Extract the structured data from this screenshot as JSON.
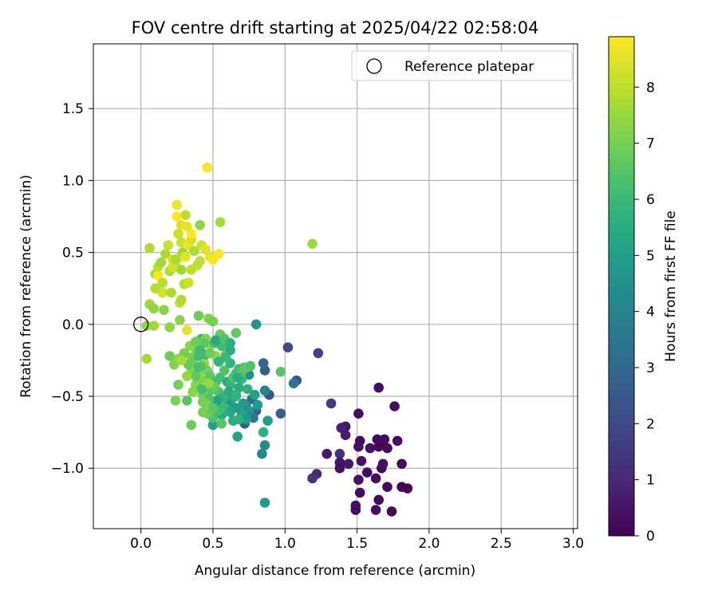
{
  "chart_data": {
    "type": "scatter",
    "title": "FOV centre drift starting at 2025/04/22 02:58:04",
    "xlabel": "Angular distance from reference (arcmin)",
    "ylabel": "Rotation from reference (arcmin)",
    "xlim": [
      -0.33,
      3.03
    ],
    "ylim": [
      -1.42,
      1.95
    ],
    "xticks": [
      0.0,
      0.5,
      1.0,
      1.5,
      2.0,
      2.5,
      3.0
    ],
    "xtick_labels": [
      "0.0",
      "0.5",
      "1.0",
      "1.5",
      "2.0",
      "2.5",
      "3.0"
    ],
    "yticks": [
      -1.0,
      -0.5,
      0.0,
      0.5,
      1.0,
      1.5
    ],
    "ytick_labels": [
      "−1.0",
      "−0.5",
      "0.0",
      "0.5",
      "1.0",
      "1.5"
    ],
    "grid": true,
    "legend_position": "upper right",
    "legend": [
      {
        "label": "Reference platepar",
        "marker": "open-circle"
      }
    ],
    "reference_point": {
      "x": 0.0,
      "y": 0.0
    },
    "colorbar": {
      "label": "Hours from first FF file",
      "range": [
        0,
        8.9
      ],
      "ticks": [
        0,
        1,
        2,
        3,
        4,
        5,
        6,
        7,
        8
      ],
      "tick_labels": [
        "0",
        "1",
        "2",
        "3",
        "4",
        "5",
        "6",
        "7",
        "8"
      ],
      "colormap": "viridis",
      "stops": [
        "#440154",
        "#482878",
        "#3e4989",
        "#31688e",
        "#26828e",
        "#1f9e89",
        "#35b779",
        "#6ece58",
        "#b5de2b",
        "#fde725"
      ]
    },
    "points": [
      {
        "x": 1.65,
        "y": -0.44,
        "h": 0.3
      },
      {
        "x": 1.76,
        "y": -0.57,
        "h": 0.3
      },
      {
        "x": 1.51,
        "y": -0.62,
        "h": 0.4
      },
      {
        "x": 1.64,
        "y": -0.8,
        "h": 0.2
      },
      {
        "x": 1.69,
        "y": -0.8,
        "h": 0.1
      },
      {
        "x": 1.78,
        "y": -0.81,
        "h": 0.3
      },
      {
        "x": 1.52,
        "y": -0.81,
        "h": 0.3
      },
      {
        "x": 1.67,
        "y": -0.83,
        "h": 0.2
      },
      {
        "x": 1.65,
        "y": -0.85,
        "h": 0.1
      },
      {
        "x": 1.71,
        "y": -0.86,
        "h": 0.2
      },
      {
        "x": 1.59,
        "y": -0.86,
        "h": 0.3
      },
      {
        "x": 1.51,
        "y": -0.85,
        "h": 0.4
      },
      {
        "x": 1.29,
        "y": -0.9,
        "h": 0.6
      },
      {
        "x": 1.38,
        "y": -0.9,
        "h": 1.3
      },
      {
        "x": 1.53,
        "y": -0.95,
        "h": 0.4
      },
      {
        "x": 1.38,
        "y": -0.96,
        "h": 0.5
      },
      {
        "x": 1.44,
        "y": -0.97,
        "h": 0.6
      },
      {
        "x": 1.38,
        "y": -1.0,
        "h": 0.4
      },
      {
        "x": 1.68,
        "y": -0.97,
        "h": 0.3
      },
      {
        "x": 1.81,
        "y": -0.97,
        "h": 0.2
      },
      {
        "x": 1.67,
        "y": -1.0,
        "h": 0.3
      },
      {
        "x": 1.57,
        "y": -1.03,
        "h": 0.3
      },
      {
        "x": 1.22,
        "y": -1.04,
        "h": 1.0
      },
      {
        "x": 1.19,
        "y": -1.07,
        "h": 1.3
      },
      {
        "x": 1.51,
        "y": -1.08,
        "h": 0.4
      },
      {
        "x": 1.63,
        "y": -1.07,
        "h": 0.3
      },
      {
        "x": 1.71,
        "y": -1.13,
        "h": 0.2
      },
      {
        "x": 1.81,
        "y": -1.13,
        "h": 0.2
      },
      {
        "x": 1.85,
        "y": -1.14,
        "h": 0.1
      },
      {
        "x": 1.52,
        "y": -1.17,
        "h": 0.3
      },
      {
        "x": 1.65,
        "y": -1.22,
        "h": 0.2
      },
      {
        "x": 1.49,
        "y": -1.26,
        "h": 0.4
      },
      {
        "x": 1.49,
        "y": -1.29,
        "h": 0.3
      },
      {
        "x": 1.63,
        "y": -1.29,
        "h": 0.3
      },
      {
        "x": 1.74,
        "y": -1.3,
        "h": 0.2
      },
      {
        "x": 1.42,
        "y": -0.71,
        "h": 0.5
      },
      {
        "x": 1.39,
        "y": -0.72,
        "h": 0.8
      },
      {
        "x": 1.42,
        "y": -0.77,
        "h": 0.7
      },
      {
        "x": 1.32,
        "y": -0.55,
        "h": 1.6
      },
      {
        "x": 1.23,
        "y": -0.2,
        "h": 1.8
      },
      {
        "x": 1.02,
        "y": -0.16,
        "h": 2.0
      },
      {
        "x": 1.08,
        "y": -0.39,
        "h": 2.4
      },
      {
        "x": 1.06,
        "y": -0.41,
        "h": 3.5
      },
      {
        "x": 0.89,
        "y": -0.49,
        "h": 2.3
      },
      {
        "x": 0.97,
        "y": -0.62,
        "h": 2.8
      },
      {
        "x": 0.88,
        "y": -0.67,
        "h": 5.0
      },
      {
        "x": 0.86,
        "y": -0.32,
        "h": 2.6
      },
      {
        "x": 0.85,
        "y": -0.27,
        "h": 3.0
      },
      {
        "x": 0.86,
        "y": -0.46,
        "h": 4.0
      },
      {
        "x": 0.8,
        "y": 0.0,
        "h": 4.7
      },
      {
        "x": 0.97,
        "y": -0.33,
        "h": 6.5
      },
      {
        "x": 1.19,
        "y": 0.56,
        "h": 7.6
      },
      {
        "x": 0.85,
        "y": -0.75,
        "h": 5.6
      },
      {
        "x": 0.86,
        "y": -0.84,
        "h": 4.3
      },
      {
        "x": 0.84,
        "y": -0.9,
        "h": 4.2
      },
      {
        "x": 0.86,
        "y": -1.24,
        "h": 4.8
      },
      {
        "x": 0.72,
        "y": -0.3,
        "h": 5.0
      },
      {
        "x": 0.75,
        "y": -0.35,
        "h": 4.5
      },
      {
        "x": 0.7,
        "y": -0.38,
        "h": 6.0
      },
      {
        "x": 0.68,
        "y": -0.44,
        "h": 5.5
      },
      {
        "x": 0.77,
        "y": -0.52,
        "h": 3.0
      },
      {
        "x": 0.73,
        "y": -0.57,
        "h": 4.0
      },
      {
        "x": 0.8,
        "y": -0.6,
        "h": 2.8
      },
      {
        "x": 0.78,
        "y": -0.65,
        "h": 3.5
      },
      {
        "x": 0.72,
        "y": -0.69,
        "h": 2.5
      },
      {
        "x": 0.64,
        "y": -0.67,
        "h": 5.5
      },
      {
        "x": 0.67,
        "y": -0.78,
        "h": 5.2
      },
      {
        "x": 0.56,
        "y": -0.63,
        "h": 5.5
      },
      {
        "x": 0.5,
        "y": -0.7,
        "h": 5.1
      },
      {
        "x": 0.56,
        "y": -0.69,
        "h": 6.5
      },
      {
        "x": 0.35,
        "y": -0.7,
        "h": 6.9
      },
      {
        "x": 0.5,
        "y": -0.65,
        "h": 6.3
      },
      {
        "x": 0.46,
        "y": -0.62,
        "h": 6.8
      },
      {
        "x": 0.43,
        "y": -0.61,
        "h": 7.0
      },
      {
        "x": 0.52,
        "y": -0.56,
        "h": 6.0
      },
      {
        "x": 0.6,
        "y": -0.58,
        "h": 5.8
      },
      {
        "x": 0.55,
        "y": -0.52,
        "h": 7.3
      },
      {
        "x": 0.63,
        "y": -0.52,
        "h": 5.5
      },
      {
        "x": 0.66,
        "y": -0.5,
        "h": 5.6
      },
      {
        "x": 0.54,
        "y": -0.47,
        "h": 6.3
      },
      {
        "x": 0.48,
        "y": -0.46,
        "h": 6.6
      },
      {
        "x": 0.43,
        "y": -0.49,
        "h": 6.9
      },
      {
        "x": 0.42,
        "y": -0.38,
        "h": 7.1
      },
      {
        "x": 0.4,
        "y": -0.35,
        "h": 7.3
      },
      {
        "x": 0.38,
        "y": -0.42,
        "h": 7.3
      },
      {
        "x": 0.35,
        "y": -0.31,
        "h": 7.2
      },
      {
        "x": 0.32,
        "y": -0.53,
        "h": 6.5
      },
      {
        "x": 0.24,
        "y": -0.53,
        "h": 7.1
      },
      {
        "x": 0.26,
        "y": -0.42,
        "h": 7.0
      },
      {
        "x": 0.23,
        "y": -0.28,
        "h": 7.2
      },
      {
        "x": 0.2,
        "y": -0.22,
        "h": 6.9
      },
      {
        "x": 0.26,
        "y": -0.24,
        "h": 7.3
      },
      {
        "x": 0.35,
        "y": -0.23,
        "h": 7.1
      },
      {
        "x": 0.38,
        "y": -0.17,
        "h": 7.0
      },
      {
        "x": 0.42,
        "y": -0.1,
        "h": 6.0
      },
      {
        "x": 0.45,
        "y": -0.1,
        "h": 7.2
      },
      {
        "x": 0.48,
        "y": -0.14,
        "h": 7.5
      },
      {
        "x": 0.52,
        "y": -0.22,
        "h": 7.4
      },
      {
        "x": 0.59,
        "y": -0.21,
        "h": 6.7
      },
      {
        "x": 0.62,
        "y": -0.18,
        "h": 5.5
      },
      {
        "x": 0.66,
        "y": -0.06,
        "h": 6.7
      },
      {
        "x": 0.57,
        "y": -0.11,
        "h": 6.5
      },
      {
        "x": 0.55,
        "y": -0.07,
        "h": 6.8
      },
      {
        "x": 0.51,
        "y": -0.13,
        "h": 6.2
      },
      {
        "x": 0.47,
        "y": 0.04,
        "h": 7.2
      },
      {
        "x": 0.5,
        "y": 0.02,
        "h": 7.0
      },
      {
        "x": 0.4,
        "y": 0.06,
        "h": 6.9
      },
      {
        "x": 0.32,
        "y": -0.04,
        "h": 8.6
      },
      {
        "x": 0.27,
        "y": 0.03,
        "h": 7.3
      },
      {
        "x": 0.2,
        "y": -0.02,
        "h": 7.4
      },
      {
        "x": 0.09,
        "y": -0.01,
        "h": 7.6
      },
      {
        "x": 0.04,
        "y": -0.01,
        "h": 7.5
      },
      {
        "x": 0.04,
        "y": -0.24,
        "h": 7.7
      },
      {
        "x": 0.06,
        "y": 0.14,
        "h": 7.6
      },
      {
        "x": 0.09,
        "y": 0.11,
        "h": 7.4
      },
      {
        "x": 0.16,
        "y": 0.1,
        "h": 7.3
      },
      {
        "x": 0.15,
        "y": 0.22,
        "h": 8.3
      },
      {
        "x": 0.21,
        "y": 0.22,
        "h": 7.8
      },
      {
        "x": 0.27,
        "y": 0.15,
        "h": 8.0
      },
      {
        "x": 0.28,
        "y": 0.17,
        "h": 7.8
      },
      {
        "x": 0.1,
        "y": 0.25,
        "h": 7.9
      },
      {
        "x": 0.1,
        "y": 0.35,
        "h": 7.7
      },
      {
        "x": 0.12,
        "y": 0.34,
        "h": 8.9
      },
      {
        "x": 0.12,
        "y": 0.4,
        "h": 8.0
      },
      {
        "x": 0.14,
        "y": 0.43,
        "h": 7.6
      },
      {
        "x": 0.17,
        "y": 0.49,
        "h": 7.8
      },
      {
        "x": 0.19,
        "y": 0.55,
        "h": 8.1
      },
      {
        "x": 0.22,
        "y": 0.45,
        "h": 8.4
      },
      {
        "x": 0.24,
        "y": 0.4,
        "h": 8.0
      },
      {
        "x": 0.2,
        "y": 0.37,
        "h": 7.8
      },
      {
        "x": 0.26,
        "y": 0.46,
        "h": 8.6
      },
      {
        "x": 0.28,
        "y": 0.57,
        "h": 8.2
      },
      {
        "x": 0.29,
        "y": 0.5,
        "h": 7.6
      },
      {
        "x": 0.31,
        "y": 0.47,
        "h": 8.5
      },
      {
        "x": 0.33,
        "y": 0.55,
        "h": 8.7
      },
      {
        "x": 0.35,
        "y": 0.59,
        "h": 8.3
      },
      {
        "x": 0.35,
        "y": 0.63,
        "h": 8.9
      },
      {
        "x": 0.37,
        "y": 0.51,
        "h": 7.8
      },
      {
        "x": 0.39,
        "y": 0.41,
        "h": 8.1
      },
      {
        "x": 0.41,
        "y": 0.44,
        "h": 8.0
      },
      {
        "x": 0.41,
        "y": 0.69,
        "h": 7.4
      },
      {
        "x": 0.42,
        "y": 0.55,
        "h": 8.2
      },
      {
        "x": 0.45,
        "y": 0.52,
        "h": 8.5
      },
      {
        "x": 0.48,
        "y": 0.47,
        "h": 8.5
      },
      {
        "x": 0.5,
        "y": 0.45,
        "h": 8.8
      },
      {
        "x": 0.54,
        "y": 0.49,
        "h": 8.8
      },
      {
        "x": 0.55,
        "y": 0.71,
        "h": 7.7
      },
      {
        "x": 0.46,
        "y": 1.09,
        "h": 8.8
      },
      {
        "x": 0.25,
        "y": 0.83,
        "h": 8.7
      },
      {
        "x": 0.25,
        "y": 0.75,
        "h": 8.9
      },
      {
        "x": 0.26,
        "y": 0.63,
        "h": 8.2
      },
      {
        "x": 0.28,
        "y": 0.69,
        "h": 8.4
      },
      {
        "x": 0.31,
        "y": 0.76,
        "h": 8.0
      },
      {
        "x": 0.32,
        "y": 0.68,
        "h": 8.6
      },
      {
        "x": 0.06,
        "y": 0.53,
        "h": 7.8
      },
      {
        "x": 0.3,
        "y": 0.28,
        "h": 7.9
      },
      {
        "x": 0.33,
        "y": 0.29,
        "h": 8.2
      },
      {
        "x": 0.35,
        "y": 0.38,
        "h": 8.0
      },
      {
        "x": 0.28,
        "y": 0.38,
        "h": 7.6
      },
      {
        "x": 0.22,
        "y": 0.4,
        "h": 8.3
      },
      {
        "x": 0.15,
        "y": 0.29,
        "h": 7.9
      },
      {
        "x": 0.24,
        "y": 0.45,
        "h": 7.7
      },
      {
        "x": 0.44,
        "y": -0.27,
        "h": 7.6
      },
      {
        "x": 0.46,
        "y": -0.32,
        "h": 7.0
      },
      {
        "x": 0.48,
        "y": -0.36,
        "h": 6.6
      },
      {
        "x": 0.52,
        "y": -0.4,
        "h": 6.0
      },
      {
        "x": 0.55,
        "y": -0.37,
        "h": 6.2
      },
      {
        "x": 0.58,
        "y": -0.32,
        "h": 6.4
      },
      {
        "x": 0.6,
        "y": -0.4,
        "h": 5.4
      },
      {
        "x": 0.62,
        "y": -0.42,
        "h": 5.8
      },
      {
        "x": 0.64,
        "y": -0.37,
        "h": 6.4
      },
      {
        "x": 0.66,
        "y": -0.34,
        "h": 6.3
      },
      {
        "x": 0.68,
        "y": -0.31,
        "h": 6.1
      },
      {
        "x": 0.7,
        "y": -0.33,
        "h": 6.5
      },
      {
        "x": 0.73,
        "y": -0.3,
        "h": 6.7
      },
      {
        "x": 0.76,
        "y": -0.29,
        "h": 6.4
      },
      {
        "x": 0.62,
        "y": -0.27,
        "h": 5.8
      },
      {
        "x": 0.59,
        "y": -0.23,
        "h": 6.0
      },
      {
        "x": 0.56,
        "y": -0.15,
        "h": 6.2
      },
      {
        "x": 0.52,
        "y": -0.11,
        "h": 5.4
      },
      {
        "x": 0.45,
        "y": -0.21,
        "h": 6.0
      },
      {
        "x": 0.42,
        "y": -0.29,
        "h": 6.6
      },
      {
        "x": 0.38,
        "y": -0.3,
        "h": 7.2
      },
      {
        "x": 0.36,
        "y": -0.26,
        "h": 6.8
      },
      {
        "x": 0.4,
        "y": -0.22,
        "h": 6.2
      },
      {
        "x": 0.44,
        "y": -0.13,
        "h": 6.6
      },
      {
        "x": 0.61,
        "y": -0.47,
        "h": 5.3
      },
      {
        "x": 0.66,
        "y": -0.49,
        "h": 5.8
      },
      {
        "x": 0.71,
        "y": -0.55,
        "h": 4.8
      },
      {
        "x": 0.75,
        "y": -0.6,
        "h": 4.6
      },
      {
        "x": 0.7,
        "y": -0.62,
        "h": 5.2
      },
      {
        "x": 0.66,
        "y": -0.58,
        "h": 5.0
      },
      {
        "x": 0.61,
        "y": -0.56,
        "h": 4.8
      },
      {
        "x": 0.58,
        "y": -0.58,
        "h": 6.0
      },
      {
        "x": 0.57,
        "y": -0.51,
        "h": 5.7
      },
      {
        "x": 0.53,
        "y": -0.53,
        "h": 5.2
      },
      {
        "x": 0.47,
        "y": -0.52,
        "h": 6.4
      },
      {
        "x": 0.45,
        "y": -0.55,
        "h": 7.2
      },
      {
        "x": 0.51,
        "y": -0.43,
        "h": 6.8
      },
      {
        "x": 0.47,
        "y": -0.41,
        "h": 7.5
      },
      {
        "x": 0.42,
        "y": -0.45,
        "h": 6.2
      },
      {
        "x": 0.38,
        "y": -0.36,
        "h": 6.7
      },
      {
        "x": 0.4,
        "y": -0.3,
        "h": 6.3
      },
      {
        "x": 0.33,
        "y": -0.28,
        "h": 6.8
      },
      {
        "x": 0.3,
        "y": -0.2,
        "h": 7.0
      },
      {
        "x": 0.34,
        "y": -0.15,
        "h": 7.3
      },
      {
        "x": 0.38,
        "y": -0.12,
        "h": 6.9
      },
      {
        "x": 0.41,
        "y": -0.18,
        "h": 6.1
      },
      {
        "x": 0.48,
        "y": -0.2,
        "h": 6.9
      },
      {
        "x": 0.54,
        "y": -0.26,
        "h": 5.9
      },
      {
        "x": 0.58,
        "y": -0.1,
        "h": 6.4
      },
      {
        "x": 0.62,
        "y": -0.13,
        "h": 5.6
      },
      {
        "x": 0.67,
        "y": -0.37,
        "h": 5.5
      },
      {
        "x": 0.74,
        "y": -0.45,
        "h": 5.7
      },
      {
        "x": 0.79,
        "y": -0.49,
        "h": 5.1
      },
      {
        "x": 0.81,
        "y": -0.56,
        "h": 4.8
      },
      {
        "x": 0.73,
        "y": -0.66,
        "h": 4.9
      },
      {
        "x": 0.68,
        "y": -0.66,
        "h": 5.6
      },
      {
        "x": 0.62,
        "y": -0.61,
        "h": 5.3
      },
      {
        "x": 0.54,
        "y": -0.6,
        "h": 6.2
      },
      {
        "x": 0.5,
        "y": -0.58,
        "h": 6.6
      },
      {
        "x": 0.43,
        "y": -0.54,
        "h": 7.0
      },
      {
        "x": 0.36,
        "y": -0.47,
        "h": 7.3
      },
      {
        "x": 0.32,
        "y": -0.36,
        "h": 7.5
      },
      {
        "x": 0.28,
        "y": -0.25,
        "h": 7.7
      }
    ]
  }
}
